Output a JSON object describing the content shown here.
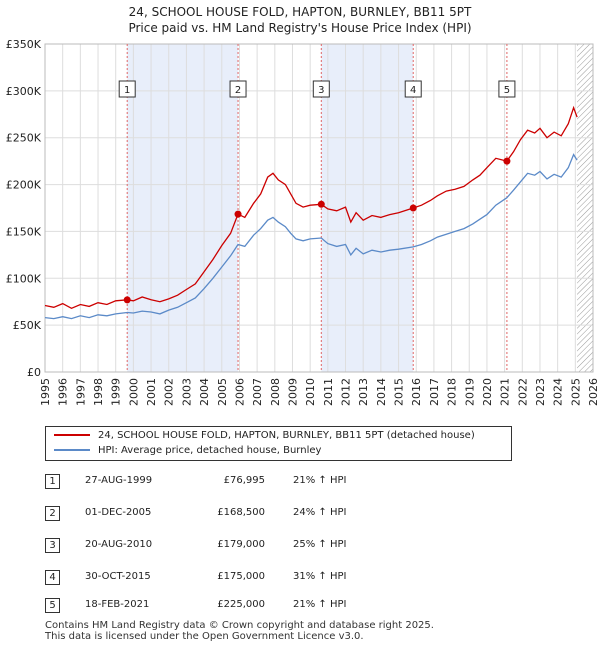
{
  "header": {
    "title": "24, SCHOOL HOUSE FOLD, HAPTON, BURNLEY, BB11 5PT",
    "subtitle": "Price paid vs. HM Land Registry's House Price Index (HPI)"
  },
  "chart_data": {
    "type": "line",
    "title": "24, SCHOOL HOUSE FOLD, HAPTON, BURNLEY, BB11 5PT",
    "subtitle": "Price paid vs. HM Land Registry's House Price Index (HPI)",
    "xlim": [
      1995,
      2026
    ],
    "ylim": [
      0,
      350000
    ],
    "x_ticks": [
      "1995",
      "1996",
      "1997",
      "1998",
      "1999",
      "2000",
      "2001",
      "2002",
      "2003",
      "2004",
      "2005",
      "2006",
      "2007",
      "2008",
      "2009",
      "2010",
      "2011",
      "2012",
      "2013",
      "2014",
      "2015",
      "2016",
      "2017",
      "2018",
      "2019",
      "2020",
      "2021",
      "2022",
      "2023",
      "2024",
      "2025",
      "2026"
    ],
    "y_ticks": [
      {
        "value": 0,
        "label": "£0"
      },
      {
        "value": 50000,
        "label": "£50K"
      },
      {
        "value": 100000,
        "label": "£100K"
      },
      {
        "value": 150000,
        "label": "£150K"
      },
      {
        "value": 200000,
        "label": "£200K"
      },
      {
        "value": 250000,
        "label": "£250K"
      },
      {
        "value": 300000,
        "label": "£300K"
      },
      {
        "value": 350000,
        "label": "£350K"
      }
    ],
    "grid": true,
    "future_hatch_from": 2025.1,
    "series": [
      {
        "name": "24, SCHOOL HOUSE FOLD, HAPTON, BURNLEY, BB11 5PT (detached house)",
        "color": "#cc0000",
        "points": [
          [
            1995.0,
            71000
          ],
          [
            1995.5,
            69000
          ],
          [
            1996.0,
            73000
          ],
          [
            1996.5,
            68000
          ],
          [
            1997.0,
            72000
          ],
          [
            1997.5,
            70000
          ],
          [
            1998.0,
            74000
          ],
          [
            1998.5,
            72000
          ],
          [
            1999.0,
            76000
          ],
          [
            1999.65,
            76995
          ],
          [
            2000.0,
            76000
          ],
          [
            2000.5,
            80000
          ],
          [
            2001.0,
            77000
          ],
          [
            2001.5,
            75000
          ],
          [
            2002.0,
            78000
          ],
          [
            2002.5,
            82000
          ],
          [
            2003.0,
            88000
          ],
          [
            2003.5,
            94000
          ],
          [
            2004.0,
            107000
          ],
          [
            2004.5,
            120000
          ],
          [
            2005.0,
            135000
          ],
          [
            2005.5,
            148000
          ],
          [
            2005.92,
            168500
          ],
          [
            2006.3,
            165000
          ],
          [
            2006.8,
            180000
          ],
          [
            2007.2,
            190000
          ],
          [
            2007.6,
            208000
          ],
          [
            2007.9,
            212000
          ],
          [
            2008.2,
            205000
          ],
          [
            2008.6,
            200000
          ],
          [
            2008.9,
            190000
          ],
          [
            2009.2,
            180000
          ],
          [
            2009.6,
            176000
          ],
          [
            2010.0,
            178000
          ],
          [
            2010.63,
            179000
          ],
          [
            2011.0,
            174000
          ],
          [
            2011.5,
            172000
          ],
          [
            2012.0,
            176000
          ],
          [
            2012.3,
            160000
          ],
          [
            2012.6,
            170000
          ],
          [
            2013.0,
            162000
          ],
          [
            2013.5,
            167000
          ],
          [
            2014.0,
            165000
          ],
          [
            2014.5,
            168000
          ],
          [
            2015.0,
            170000
          ],
          [
            2015.83,
            175000
          ],
          [
            2016.3,
            178000
          ],
          [
            2016.8,
            183000
          ],
          [
            2017.2,
            188000
          ],
          [
            2017.7,
            193000
          ],
          [
            2018.2,
            195000
          ],
          [
            2018.7,
            198000
          ],
          [
            2019.2,
            205000
          ],
          [
            2019.6,
            210000
          ],
          [
            2020.0,
            218000
          ],
          [
            2020.5,
            228000
          ],
          [
            2021.13,
            225000
          ],
          [
            2021.5,
            235000
          ],
          [
            2021.9,
            248000
          ],
          [
            2022.3,
            258000
          ],
          [
            2022.7,
            255000
          ],
          [
            2023.0,
            260000
          ],
          [
            2023.4,
            250000
          ],
          [
            2023.8,
            256000
          ],
          [
            2024.2,
            252000
          ],
          [
            2024.6,
            265000
          ],
          [
            2024.9,
            282000
          ],
          [
            2025.1,
            272000
          ]
        ]
      },
      {
        "name": "HPI: Average price, detached house, Burnley",
        "color": "#5b8ac8",
        "points": [
          [
            1995.0,
            58000
          ],
          [
            1995.5,
            57000
          ],
          [
            1996.0,
            59000
          ],
          [
            1996.5,
            57000
          ],
          [
            1997.0,
            60000
          ],
          [
            1997.5,
            58000
          ],
          [
            1998.0,
            61000
          ],
          [
            1998.5,
            60000
          ],
          [
            1999.0,
            62000
          ],
          [
            1999.65,
            63500
          ],
          [
            2000.0,
            63000
          ],
          [
            2000.5,
            65000
          ],
          [
            2001.0,
            64000
          ],
          [
            2001.5,
            62000
          ],
          [
            2002.0,
            66000
          ],
          [
            2002.5,
            69000
          ],
          [
            2003.0,
            74000
          ],
          [
            2003.5,
            79000
          ],
          [
            2004.0,
            89000
          ],
          [
            2004.5,
            100000
          ],
          [
            2005.0,
            112000
          ],
          [
            2005.5,
            124000
          ],
          [
            2005.92,
            136000
          ],
          [
            2006.3,
            134000
          ],
          [
            2006.8,
            146000
          ],
          [
            2007.2,
            153000
          ],
          [
            2007.6,
            162000
          ],
          [
            2007.9,
            165000
          ],
          [
            2008.2,
            160000
          ],
          [
            2008.6,
            155000
          ],
          [
            2008.9,
            148000
          ],
          [
            2009.2,
            142000
          ],
          [
            2009.6,
            140000
          ],
          [
            2010.0,
            142000
          ],
          [
            2010.63,
            143000
          ],
          [
            2011.0,
            137000
          ],
          [
            2011.5,
            134000
          ],
          [
            2012.0,
            136000
          ],
          [
            2012.3,
            125000
          ],
          [
            2012.6,
            132000
          ],
          [
            2013.0,
            126000
          ],
          [
            2013.5,
            130000
          ],
          [
            2014.0,
            128000
          ],
          [
            2014.5,
            130000
          ],
          [
            2015.0,
            131000
          ],
          [
            2015.83,
            133500
          ],
          [
            2016.3,
            136000
          ],
          [
            2016.8,
            140000
          ],
          [
            2017.2,
            144000
          ],
          [
            2017.7,
            147000
          ],
          [
            2018.2,
            150000
          ],
          [
            2018.7,
            153000
          ],
          [
            2019.2,
            158000
          ],
          [
            2019.6,
            163000
          ],
          [
            2020.0,
            168000
          ],
          [
            2020.5,
            178000
          ],
          [
            2021.13,
            186000
          ],
          [
            2021.5,
            194000
          ],
          [
            2021.9,
            203000
          ],
          [
            2022.3,
            212000
          ],
          [
            2022.7,
            210000
          ],
          [
            2023.0,
            214000
          ],
          [
            2023.4,
            206000
          ],
          [
            2023.8,
            211000
          ],
          [
            2024.2,
            208000
          ],
          [
            2024.6,
            218000
          ],
          [
            2024.9,
            232000
          ],
          [
            2025.1,
            226000
          ]
        ]
      }
    ],
    "transactions": [
      {
        "id": "1",
        "x": 1999.65,
        "price": 76995,
        "date": "27-AUG-1999",
        "price_label": "£76,995",
        "hpi": "21% ↑ HPI"
      },
      {
        "id": "2",
        "x": 2005.92,
        "price": 168500,
        "date": "01-DEC-2005",
        "price_label": "£168,500",
        "hpi": "24% ↑ HPI"
      },
      {
        "id": "3",
        "x": 2010.63,
        "price": 179000,
        "date": "20-AUG-2010",
        "price_label": "£179,000",
        "hpi": "25% ↑ HPI"
      },
      {
        "id": "4",
        "x": 2015.83,
        "price": 175000,
        "date": "30-OCT-2015",
        "price_label": "£175,000",
        "hpi": "31% ↑ HPI"
      },
      {
        "id": "5",
        "x": 2021.13,
        "price": 225000,
        "date": "18-FEB-2021",
        "price_label": "£225,000",
        "hpi": "21% ↑ HPI"
      }
    ]
  },
  "legend": {
    "property_label": "24, SCHOOL HOUSE FOLD, HAPTON, BURNLEY, BB11 5PT (detached house)",
    "hpi_label": "HPI: Average price, detached house, Burnley"
  },
  "footer": {
    "line1": "Contains HM Land Registry data © Crown copyright and database right 2025.",
    "line2": "This data is licensed under the Open Government Licence v3.0."
  },
  "colors": {
    "property": "#cc0000",
    "hpi": "#5b8ac8",
    "highlight": "#e8eefa",
    "grid": "#dddddd"
  }
}
